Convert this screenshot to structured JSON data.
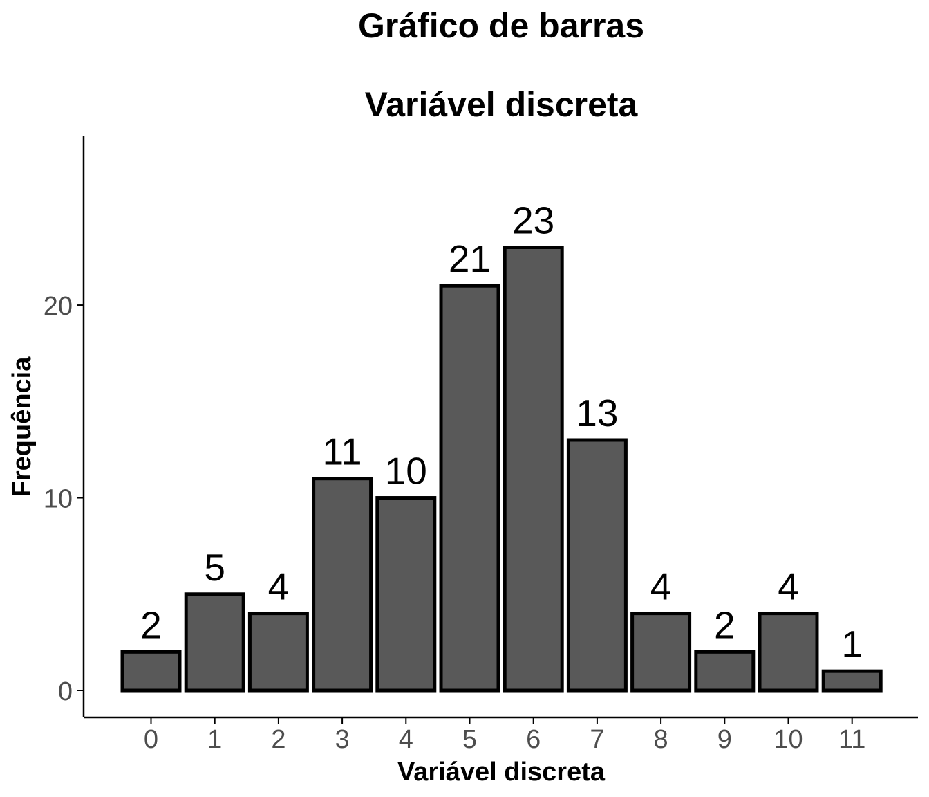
{
  "chart_data": {
    "type": "bar",
    "title": "Gráfico de barras",
    "subtitle": "Variável discreta",
    "xlabel": "Variável discreta",
    "ylabel": "Frequência",
    "categories": [
      "0",
      "1",
      "2",
      "3",
      "4",
      "5",
      "6",
      "7",
      "8",
      "9",
      "10",
      "11"
    ],
    "values": [
      2,
      5,
      4,
      11,
      10,
      21,
      23,
      13,
      4,
      2,
      4,
      1
    ],
    "data_labels": [
      "2",
      "5",
      "4",
      "11",
      "10",
      "21",
      "23",
      "13",
      "4",
      "2",
      "4",
      "1"
    ],
    "yticks": [
      0,
      10,
      20
    ],
    "ytick_labels": [
      "0",
      "10",
      "20"
    ],
    "ylim": [
      -1.4,
      28.8
    ],
    "grid": false,
    "legend": "none",
    "colors": {
      "bar_fill": "#595959",
      "bar_stroke": "#000000",
      "tick_text": "#4d4d4d"
    }
  }
}
